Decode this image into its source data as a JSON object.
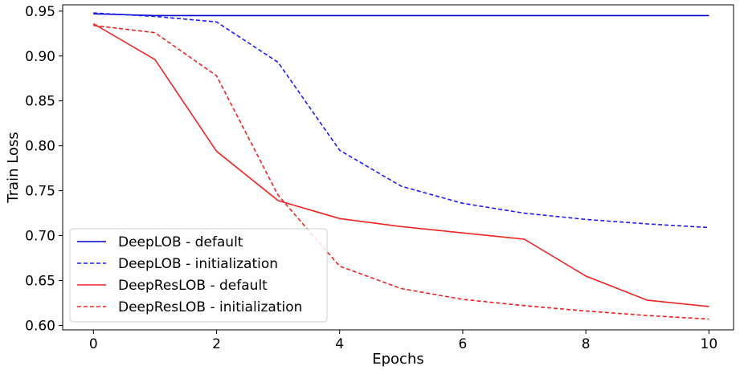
{
  "chart_data": {
    "type": "line",
    "title": "",
    "xlabel": "Epochs",
    "ylabel": "Train Loss",
    "xlim": [
      -0.5,
      10.4
    ],
    "ylim": [
      0.595,
      0.957
    ],
    "xticks": [
      0,
      2,
      4,
      6,
      8,
      10
    ],
    "xtick_labels": [
      "0",
      "2",
      "4",
      "6",
      "8",
      "10"
    ],
    "yticks": [
      0.6,
      0.65,
      0.7,
      0.75,
      0.8,
      0.85,
      0.9,
      0.95
    ],
    "ytick_labels": [
      "0.60",
      "0.65",
      "0.70",
      "0.75",
      "0.80",
      "0.85",
      "0.90",
      "0.95"
    ],
    "grid": false,
    "legend_position": "lower-left",
    "x": [
      0,
      1,
      2,
      3,
      4,
      5,
      6,
      7,
      8,
      9,
      10
    ],
    "series": [
      {
        "name": "DeepLOB - default",
        "color": "#0000cc",
        "style": "solid",
        "values": [
          0.947,
          0.945,
          0.945,
          0.945,
          0.945,
          0.945,
          0.945,
          0.945,
          0.945,
          0.945,
          0.945
        ]
      },
      {
        "name": "DeepLOB - initialization",
        "color": "#1a1aff",
        "style": "dashed",
        "values": [
          0.948,
          0.944,
          0.938,
          0.893,
          0.795,
          0.755,
          0.736,
          0.725,
          0.718,
          0.713,
          0.709
        ]
      },
      {
        "name": "DeepResLOB - default",
        "color": "#ee2222",
        "style": "solid",
        "values": [
          0.936,
          0.896,
          0.794,
          0.739,
          0.719,
          0.71,
          0.703,
          0.696,
          0.655,
          0.628,
          0.621
        ]
      },
      {
        "name": "DeepResLOB - initialization",
        "color": "#ee2222",
        "style": "dashed",
        "values": [
          0.934,
          0.926,
          0.878,
          0.745,
          0.666,
          0.641,
          0.629,
          0.622,
          0.616,
          0.611,
          0.607
        ]
      }
    ]
  }
}
